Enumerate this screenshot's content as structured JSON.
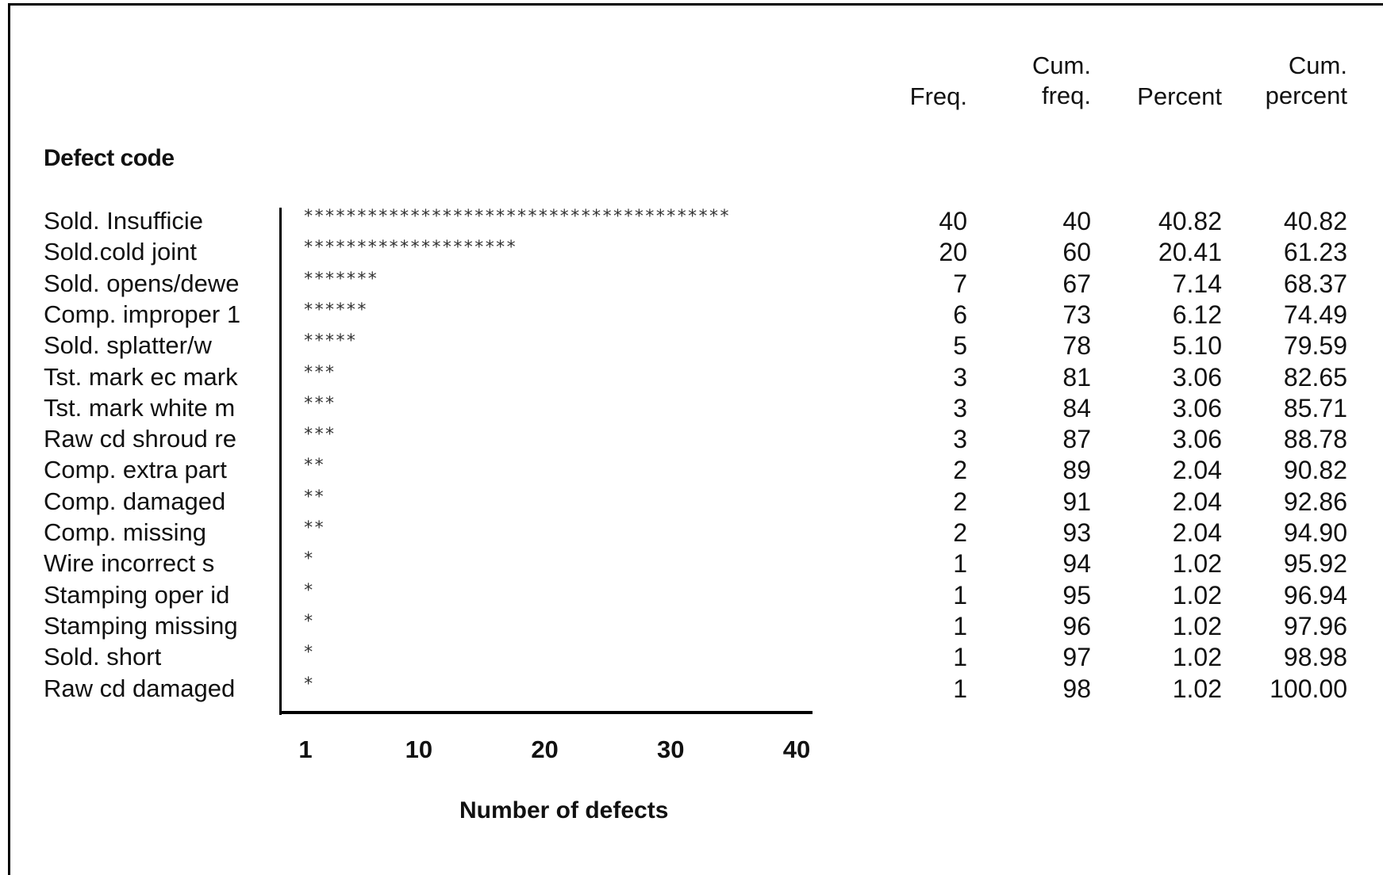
{
  "chart_data": {
    "type": "bar",
    "orientation": "horizontal",
    "mark_style": "asterisk",
    "categories": [
      "Sold. Insufficie",
      "Sold.cold joint",
      "Sold. opens/dewe",
      "Comp. improper 1",
      "Sold. splatter/w",
      "Tst. mark ec mark",
      "Tst. mark white m",
      "Raw cd shroud re",
      "Comp. extra part",
      "Comp. damaged",
      "Comp. missing",
      "Wire incorrect s",
      "Stamping oper id",
      "Stamping missing",
      "Sold. short",
      "Raw cd damaged"
    ],
    "values": [
      40,
      20,
      7,
      6,
      5,
      3,
      3,
      3,
      2,
      2,
      2,
      1,
      1,
      1,
      1,
      1
    ],
    "ylabel": "Defect code",
    "xlabel": "Number of defects",
    "xticks": [
      "1",
      "10",
      "20",
      "30",
      "40"
    ],
    "xlim": [
      0,
      40
    ],
    "table": {
      "columns": [
        {
          "key": "freq",
          "header": [
            "",
            "Freq."
          ]
        },
        {
          "key": "cum_freq",
          "header": [
            "Cum.",
            "freq."
          ]
        },
        {
          "key": "percent",
          "header": [
            "",
            "Percent"
          ]
        },
        {
          "key": "cum_percent",
          "header": [
            "Cum.",
            "percent"
          ]
        }
      ],
      "rows": [
        {
          "freq": "40",
          "cum_freq": "40",
          "percent": "40.82",
          "cum_percent": "40.82"
        },
        {
          "freq": "20",
          "cum_freq": "60",
          "percent": "20.41",
          "cum_percent": "61.23"
        },
        {
          "freq": "7",
          "cum_freq": "67",
          "percent": "7.14",
          "cum_percent": "68.37"
        },
        {
          "freq": "6",
          "cum_freq": "73",
          "percent": "6.12",
          "cum_percent": "74.49"
        },
        {
          "freq": "5",
          "cum_freq": "78",
          "percent": "5.10",
          "cum_percent": "79.59"
        },
        {
          "freq": "3",
          "cum_freq": "81",
          "percent": "3.06",
          "cum_percent": "82.65"
        },
        {
          "freq": "3",
          "cum_freq": "84",
          "percent": "3.06",
          "cum_percent": "85.71"
        },
        {
          "freq": "3",
          "cum_freq": "87",
          "percent": "3.06",
          "cum_percent": "88.78"
        },
        {
          "freq": "2",
          "cum_freq": "89",
          "percent": "2.04",
          "cum_percent": "90.82"
        },
        {
          "freq": "2",
          "cum_freq": "91",
          "percent": "2.04",
          "cum_percent": "92.86"
        },
        {
          "freq": "2",
          "cum_freq": "93",
          "percent": "2.04",
          "cum_percent": "94.90"
        },
        {
          "freq": "1",
          "cum_freq": "94",
          "percent": "1.02",
          "cum_percent": "95.92"
        },
        {
          "freq": "1",
          "cum_freq": "95",
          "percent": "1.02",
          "cum_percent": "96.94"
        },
        {
          "freq": "1",
          "cum_freq": "96",
          "percent": "1.02",
          "cum_percent": "97.96"
        },
        {
          "freq": "1",
          "cum_freq": "97",
          "percent": "1.02",
          "cum_percent": "98.98"
        },
        {
          "freq": "1",
          "cum_freq": "98",
          "percent": "1.02",
          "cum_percent": "100.00"
        }
      ]
    }
  }
}
